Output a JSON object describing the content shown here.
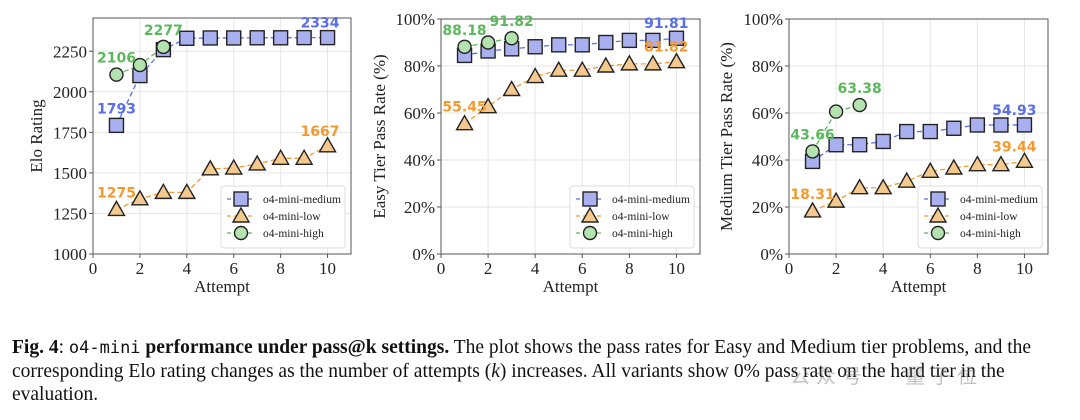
{
  "chart_data": [
    {
      "type": "line",
      "title": "",
      "xlabel": "Attempt",
      "ylabel": "Elo Rating",
      "xlim": [
        0,
        11
      ],
      "ylim": [
        1000,
        2455
      ],
      "xticks": [
        0,
        2,
        4,
        6,
        8,
        10
      ],
      "yticks": [
        1000,
        1250,
        1500,
        1750,
        2000,
        2250
      ],
      "ytick_labels": [
        "1000",
        "1250",
        "1500",
        "1750",
        "2000",
        "2250"
      ],
      "grid": true,
      "legend": "lower-right",
      "series": [
        {
          "name": "o4-mini-medium",
          "marker": "square",
          "color": "#5a6ee8",
          "fill": "#a9b0f0",
          "x": [
            1,
            2,
            3,
            4,
            5,
            6,
            7,
            8,
            9,
            10
          ],
          "values": [
            1793,
            2100,
            2260,
            2330,
            2332,
            2332,
            2333,
            2333,
            2334,
            2334
          ],
          "annotations": [
            {
              "index": 0,
              "text": "1793"
            },
            {
              "index": 9,
              "text": "2334"
            }
          ]
        },
        {
          "name": "o4-mini-low",
          "marker": "triangle",
          "color": "#f39a2e",
          "fill": "#f5c98e",
          "x": [
            1,
            2,
            3,
            4,
            5,
            6,
            7,
            8,
            9,
            10
          ],
          "values": [
            1275,
            1340,
            1380,
            1380,
            1525,
            1530,
            1555,
            1590,
            1590,
            1667
          ],
          "annotations": [
            {
              "index": 0,
              "text": "1275"
            },
            {
              "index": 9,
              "text": "1667"
            }
          ]
        },
        {
          "name": "o4-mini-high",
          "marker": "circle",
          "color": "#5cb85c",
          "fill": "#b5e3b0",
          "x": [
            1,
            2,
            3
          ],
          "values": [
            2106,
            2165,
            2277
          ],
          "annotations": [
            {
              "index": 0,
              "text": "2106"
            },
            {
              "index": 2,
              "text": "2277"
            }
          ]
        }
      ]
    },
    {
      "type": "line",
      "title": "",
      "xlabel": "Attempt",
      "ylabel": "Easy Tier Pass Rate (%)",
      "xlim": [
        0,
        11
      ],
      "ylim": [
        0,
        100
      ],
      "xticks": [
        0,
        2,
        4,
        6,
        8,
        10
      ],
      "yticks": [
        0,
        20,
        40,
        60,
        80,
        100
      ],
      "ytick_labels": [
        "0%",
        "20%",
        "40%",
        "60%",
        "80%",
        "100%"
      ],
      "grid": true,
      "legend": "lower-right",
      "series": [
        {
          "name": "o4-mini-medium",
          "marker": "square",
          "color": "#5a6ee8",
          "fill": "#a9b0f0",
          "x": [
            1,
            2,
            3,
            4,
            5,
            6,
            7,
            8,
            9,
            10
          ],
          "values": [
            84.5,
            86.4,
            87.3,
            88.2,
            89.0,
            89.0,
            90.0,
            90.9,
            90.9,
            91.81
          ],
          "annotations": [
            {
              "index": 9,
              "text": "91.81"
            }
          ]
        },
        {
          "name": "o4-mini-low",
          "marker": "triangle",
          "color": "#f39a2e",
          "fill": "#f5c98e",
          "x": [
            1,
            2,
            3,
            4,
            5,
            6,
            7,
            8,
            9,
            10
          ],
          "values": [
            55.45,
            62.7,
            70.0,
            75.5,
            78.2,
            78.2,
            80.0,
            80.9,
            80.9,
            81.82
          ],
          "annotations": [
            {
              "index": 0,
              "text": "55.45"
            },
            {
              "index": 9,
              "text": "81.82"
            }
          ]
        },
        {
          "name": "o4-mini-high",
          "marker": "circle",
          "color": "#5cb85c",
          "fill": "#b5e3b0",
          "x": [
            1,
            2,
            3
          ],
          "values": [
            88.18,
            90.0,
            91.82
          ],
          "annotations": [
            {
              "index": 0,
              "text": "88.18"
            },
            {
              "index": 2,
              "text": "91.82"
            }
          ]
        }
      ]
    },
    {
      "type": "line",
      "title": "",
      "xlabel": "Attempt",
      "ylabel": "Medium Tier Pass Rate (%)",
      "xlim": [
        0,
        11
      ],
      "ylim": [
        0,
        100
      ],
      "xticks": [
        0,
        2,
        4,
        6,
        8,
        10
      ],
      "yticks": [
        0,
        20,
        40,
        60,
        80,
        100
      ],
      "ytick_labels": [
        "0%",
        "20%",
        "40%",
        "60%",
        "80%",
        "100%"
      ],
      "grid": true,
      "legend": "lower-right",
      "series": [
        {
          "name": "o4-mini-medium",
          "marker": "square",
          "color": "#5a6ee8",
          "fill": "#a9b0f0",
          "x": [
            1,
            2,
            3,
            4,
            5,
            6,
            7,
            8,
            9,
            10
          ],
          "values": [
            39.4,
            46.5,
            46.5,
            47.9,
            52.1,
            52.1,
            53.5,
            54.9,
            54.9,
            54.93
          ],
          "annotations": [
            {
              "index": 9,
              "text": "54.93"
            }
          ]
        },
        {
          "name": "o4-mini-low",
          "marker": "triangle",
          "color": "#f39a2e",
          "fill": "#f5c98e",
          "x": [
            1,
            2,
            3,
            4,
            5,
            6,
            7,
            8,
            9,
            10
          ],
          "values": [
            18.31,
            22.5,
            28.2,
            28.2,
            31.0,
            35.2,
            36.6,
            38.0,
            38.0,
            39.44
          ],
          "annotations": [
            {
              "index": 0,
              "text": "18.31"
            },
            {
              "index": 9,
              "text": "39.44"
            }
          ]
        },
        {
          "name": "o4-mini-high",
          "marker": "circle",
          "color": "#5cb85c",
          "fill": "#b5e3b0",
          "x": [
            1,
            2,
            3
          ],
          "values": [
            43.66,
            60.6,
            63.38
          ],
          "annotations": [
            {
              "index": 0,
              "text": "43.66"
            },
            {
              "index": 2,
              "text": "63.38"
            }
          ]
        }
      ]
    }
  ],
  "caption": {
    "fig_label": "Fig. 4",
    "colon": ": ",
    "model_name": "o4-mini",
    "bold_title": " performance under pass@k settings.",
    "text_1": " The plot shows the pass rates for Easy and Medium tier problems, and the corresponding Elo rating changes as the number of attempts (",
    "k_symbol": "k",
    "text_2": ") increases. All variants show 0% pass rate on the hard tier in the evaluation."
  },
  "watermark": "公众号 · 量子位"
}
